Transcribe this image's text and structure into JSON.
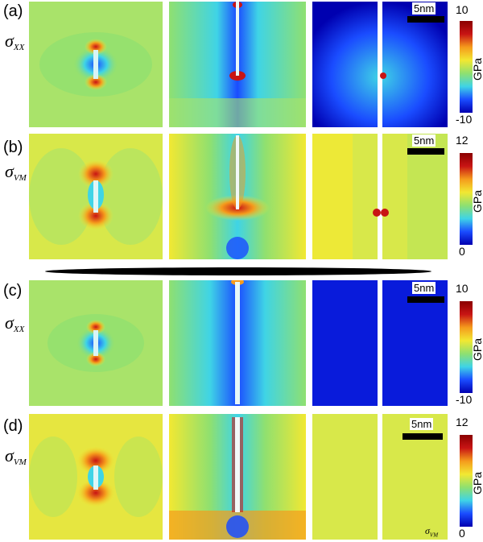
{
  "rows": [
    {
      "panel": "(a)",
      "stress_symbol": "σ",
      "stress_subscript": "XX",
      "cbar_max": "10",
      "cbar_min": "-10",
      "unit": "GPa",
      "scale": "5nm",
      "colormap": "xx"
    },
    {
      "panel": "(b)",
      "stress_symbol": "σ",
      "stress_subscript": "VM",
      "cbar_max": "12",
      "cbar_min": "0",
      "unit": "GPa",
      "scale": "5nm",
      "colormap": "vm"
    },
    {
      "panel": "(c)",
      "stress_symbol": "σ",
      "stress_subscript": "XX",
      "cbar_max": "10",
      "cbar_min": "-10",
      "unit": "GPa",
      "scale": "5nm",
      "colormap": "xx"
    },
    {
      "panel": "(d)",
      "stress_symbol": "σ",
      "stress_subscript": "VM",
      "cbar_max": "12",
      "cbar_min": "0",
      "unit": "GPa",
      "scale": "5nm",
      "colormap": "vm"
    }
  ],
  "inset_label": {
    "symbol": "σ",
    "subscript": "VM"
  },
  "colors": {
    "dark_blue": "#0000b0",
    "blue": "#1a4cff",
    "cyan": "#3fd4e6",
    "green": "#8fe070",
    "yellow": "#f2e832",
    "orange": "#f59b1c",
    "red": "#c81414",
    "dark_red": "#8a0000"
  }
}
